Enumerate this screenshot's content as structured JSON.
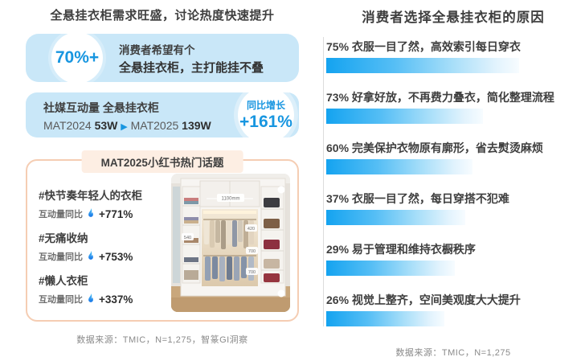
{
  "colors": {
    "accent_blue": "#1896e0",
    "box_blue": "#c9e7f8",
    "bar_blue": "#14a3f0",
    "border_peach": "#f5cdb3",
    "header_peach": "#fdeee3",
    "text_dark": "#3f3f3f",
    "text_gray": "#8a8a8a"
  },
  "left": {
    "title": "全悬挂衣柜需求旺盛，讨论热度快速提升",
    "stat_box": {
      "value": "70%+",
      "line1": "消费者希望有个",
      "line2": "全悬挂衣柜，主打能挂不叠"
    },
    "social_box": {
      "label_prefix": "社媒互动量",
      "label_topic": "全悬挂衣柜",
      "mat1_label": "MAT2024",
      "mat1_value": "53W",
      "arrow": "▶",
      "mat2_label": "MAT2025",
      "mat2_value": "139W",
      "badge_label": "同比增长",
      "badge_value": "+161%"
    },
    "topics_box": {
      "header": "MAT2025小红书热门话题",
      "items": [
        {
          "tag": "#快节奏年轻人的衣柜",
          "metric_label": "互动量同比",
          "value": "+771%"
        },
        {
          "tag": "#无痛收纳",
          "metric_label": "互动量同比",
          "value": "+753%"
        },
        {
          "tag": "#懒人衣柜",
          "metric_label": "互动量同比",
          "value": "+337%"
        }
      ],
      "photo": {
        "annotations": [
          "1100mm",
          "540",
          "420",
          "700",
          "700"
        ]
      }
    },
    "source": "数据来源：TMIC，N=1,275，智篆GI洞察"
  },
  "right": {
    "title": "消费者选择全悬挂衣柜的原因",
    "source": "数据来源：TMIC，N=1,275"
  },
  "chart_data": {
    "type": "bar",
    "orientation": "horizontal",
    "title": "消费者选择全悬挂衣柜的原因",
    "categories": [
      "衣服一目了然，高效索引每日穿衣",
      "好拿好放，不再费力叠衣，简化整理流程",
      "完美保护衣物原有廓形，省去熨烫麻烦",
      "衣服一目了然，每日穿搭不犯难",
      "易于管理和维持衣橱秩序",
      "视觉上整齐，空间美观度大大提升"
    ],
    "values": [
      75,
      73,
      60,
      37,
      29,
      26
    ],
    "unit": "%",
    "labels": [
      "75% 衣服一目了然，高效索引每日穿衣",
      "73% 好拿好放，不再费力叠衣，简化整理流程",
      "60% 完美保护衣物原有廓形，省去熨烫麻烦",
      "37% 衣服一目了然，每日穿搭不犯难",
      "29% 易于管理和维持衣橱秩序",
      "26% 视觉上整齐，空间美观度大大提升"
    ],
    "bar_display_widths_pct": [
      75,
      61,
      57,
      54,
      50,
      46
    ],
    "bar_color_start": "#14a3f0",
    "bar_color_end": "#f7fcff",
    "axis_line": true,
    "legend": false,
    "source": "数据来源：TMIC，N=1,275"
  }
}
